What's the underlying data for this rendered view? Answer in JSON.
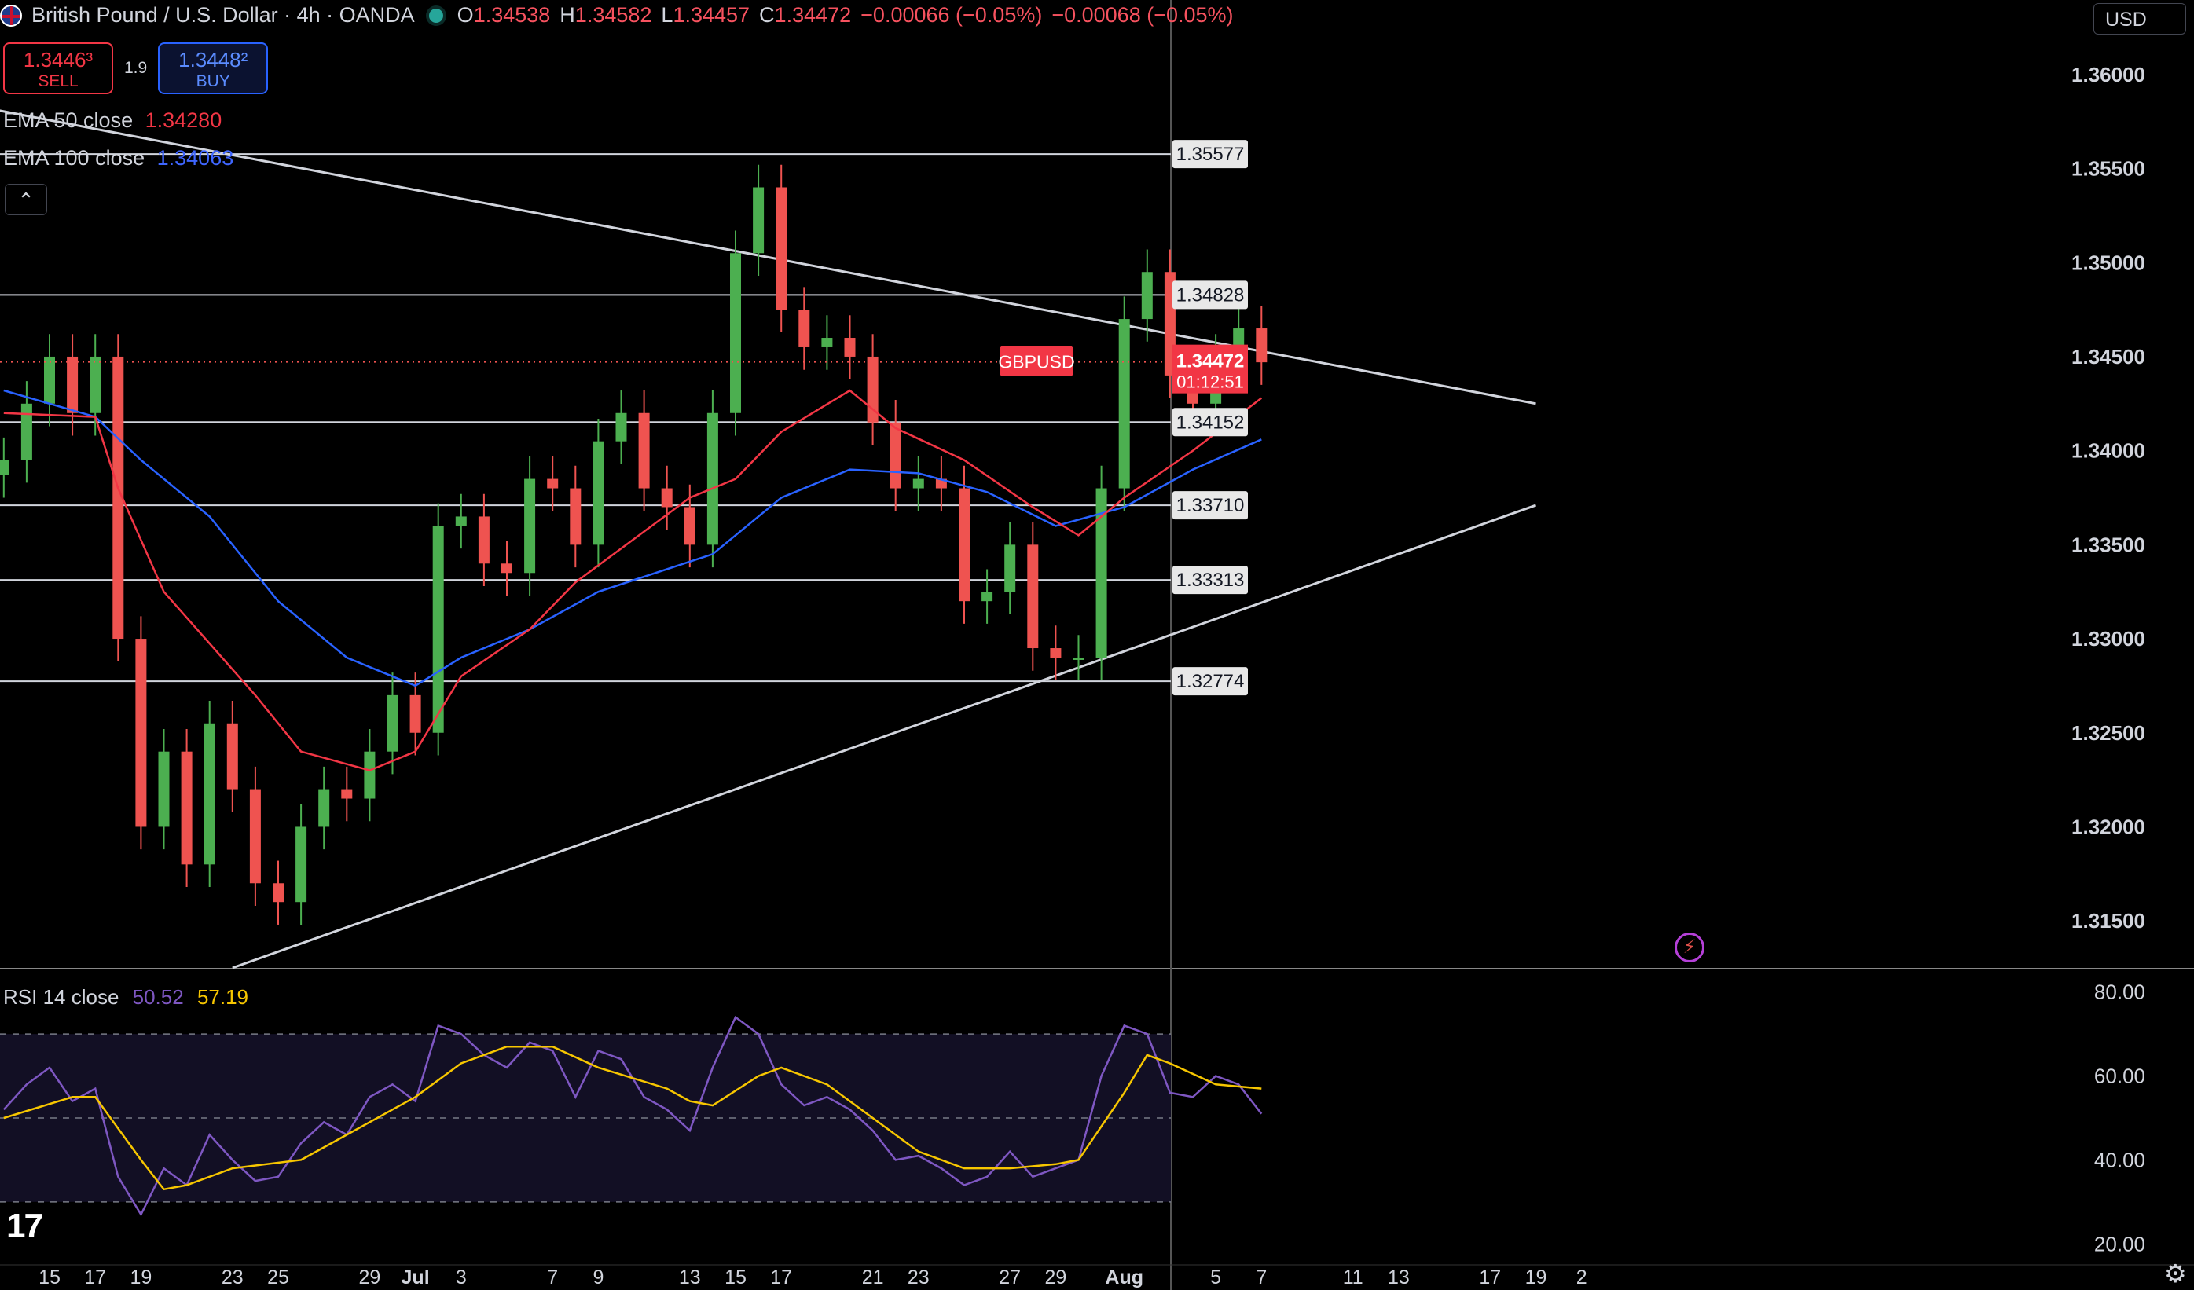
{
  "header": {
    "symbol_title": "British Pound / U.S. Dollar · 4h · OANDA",
    "ohlc": [
      {
        "k": "O",
        "v": "1.34538"
      },
      {
        "k": "H",
        "v": "1.34582"
      },
      {
        "k": "L",
        "v": "1.34457"
      },
      {
        "k": "C",
        "v": "1.34472"
      },
      {
        "k": "",
        "v": "−0.00066 (−0.05%)"
      },
      {
        "k": "",
        "v": "−0.00068 (−0.05%)"
      }
    ],
    "currency": "USD"
  },
  "trade": {
    "sell_price": "1.3446³",
    "sell_label": "SELL",
    "spread": "1.9",
    "buy_price": "1.3448²",
    "buy_label": "BUY"
  },
  "indicators": {
    "ema50_label": "EMA 50 close",
    "ema50_value": "1.34280",
    "ema100_label": "EMA 100 close",
    "ema100_value": "1.34063",
    "rsi_label": "RSI 14 close",
    "rsi_value": "50.52",
    "rsi_ma_value": "57.19"
  },
  "colors": {
    "up": "#26a69a",
    "down": "#ef5350",
    "up_candle": "#4caf50",
    "ema50": "#f23645",
    "ema100": "#2962ff",
    "rsi": "#7e57c2",
    "rsi_ma": "#f7c600",
    "lines": "#d1d4dc"
  },
  "icons": {
    "flag": "gb-us-flag-icon",
    "live": "market-open-icon",
    "collapse": "chevron-up-icon",
    "logo": "tradingview-logo-icon",
    "settings": "gear-icon",
    "alert": "lightning-icon"
  },
  "chart_data": [
    {
      "type": "candlestick",
      "title": "British Pound / U.S. Dollar · 4h · OANDA",
      "price_axis": {
        "ylim": [
          1.3125,
          1.3625
        ],
        "ticks": [
          "1.36000",
          "1.35500",
          "1.35000",
          "1.34500",
          "1.34000",
          "1.33500",
          "1.33000",
          "1.32500",
          "1.32000",
          "1.31500"
        ]
      },
      "time_axis_ticks": [
        "15",
        "17",
        "19",
        "23",
        "25",
        "29",
        "Jul",
        "3",
        "7",
        "9",
        "13",
        "15",
        "17",
        "21",
        "23",
        "27",
        "29",
        "Aug",
        "5",
        "7",
        "11",
        "13",
        "17",
        "19",
        "2"
      ],
      "horizontal_levels": [
        "1.35577",
        "1.34828",
        "1.34152",
        "1.33710",
        "1.33313",
        "1.32774"
      ],
      "last_price": {
        "symbol": "GBPUSD",
        "value": "1.34472",
        "countdown": "01:12:51"
      },
      "close_path": [
        {
          "date": "Jun 13",
          "close": 1.3395
        },
        {
          "date": "Jun 14",
          "close": 1.3425
        },
        {
          "date": "Jun 15",
          "close": 1.345
        },
        {
          "date": "Jun 16",
          "close": 1.342
        },
        {
          "date": "Jun 17",
          "close": 1.345
        },
        {
          "date": "Jun 18",
          "close": 1.33
        },
        {
          "date": "Jun 19",
          "close": 1.32
        },
        {
          "date": "Jun 20",
          "close": 1.324
        },
        {
          "date": "Jun 21",
          "close": 1.318
        },
        {
          "date": "Jun 22",
          "close": 1.3255
        },
        {
          "date": "Jun 23",
          "close": 1.322
        },
        {
          "date": "Jun 24",
          "close": 1.317
        },
        {
          "date": "Jun 25",
          "close": 1.316
        },
        {
          "date": "Jun 26",
          "close": 1.32
        },
        {
          "date": "Jun 27",
          "close": 1.322
        },
        {
          "date": "Jun 28",
          "close": 1.3215
        },
        {
          "date": "Jun 29",
          "close": 1.324
        },
        {
          "date": "Jun 30",
          "close": 1.327
        },
        {
          "date": "Jul 1",
          "close": 1.325
        },
        {
          "date": "Jul 2",
          "close": 1.336
        },
        {
          "date": "Jul 3",
          "close": 1.3365
        },
        {
          "date": "Jul 4",
          "close": 1.334
        },
        {
          "date": "Jul 5",
          "close": 1.3335
        },
        {
          "date": "Jul 6",
          "close": 1.3385
        },
        {
          "date": "Jul 7",
          "close": 1.338
        },
        {
          "date": "Jul 8",
          "close": 1.335
        },
        {
          "date": "Jul 9",
          "close": 1.3405
        },
        {
          "date": "Jul 10",
          "close": 1.342
        },
        {
          "date": "Jul 11",
          "close": 1.338
        },
        {
          "date": "Jul 12",
          "close": 1.337
        },
        {
          "date": "Jul 13",
          "close": 1.335
        },
        {
          "date": "Jul 14",
          "close": 1.342
        },
        {
          "date": "Jul 15",
          "close": 1.3505
        },
        {
          "date": "Jul 16",
          "close": 1.354
        },
        {
          "date": "Jul 17",
          "close": 1.3475
        },
        {
          "date": "Jul 18",
          "close": 1.3455
        },
        {
          "date": "Jul 19",
          "close": 1.346
        },
        {
          "date": "Jul 20",
          "close": 1.345
        },
        {
          "date": "Jul 21",
          "close": 1.3415
        },
        {
          "date": "Jul 22",
          "close": 1.338
        },
        {
          "date": "Jul 23",
          "close": 1.3385
        },
        {
          "date": "Jul 24",
          "close": 1.338
        },
        {
          "date": "Jul 25",
          "close": 1.332
        },
        {
          "date": "Jul 26",
          "close": 1.3325
        },
        {
          "date": "Jul 27",
          "close": 1.335
        },
        {
          "date": "Jul 28",
          "close": 1.3295
        },
        {
          "date": "Jul 29",
          "close": 1.329
        },
        {
          "date": "Jul 30",
          "close": 1.329
        },
        {
          "date": "Jul 31",
          "close": 1.338
        },
        {
          "date": "Aug 1",
          "close": 1.347
        },
        {
          "date": "Aug 2",
          "close": 1.3495
        },
        {
          "date": "Aug 3",
          "close": 1.344
        },
        {
          "date": "Aug 4",
          "close": 1.3425
        },
        {
          "date": "Aug 5",
          "close": 1.345
        },
        {
          "date": "Aug 6",
          "close": 1.3465
        },
        {
          "date": "Aug 7",
          "close": 1.3447
        }
      ],
      "ema50_path": [
        {
          "date": "Jun 13",
          "value": 1.342
        },
        {
          "date": "Jun 17",
          "value": 1.3418
        },
        {
          "date": "Jun 18",
          "value": 1.338
        },
        {
          "date": "Jun 20",
          "value": 1.3325
        },
        {
          "date": "Jun 24",
          "value": 1.327
        },
        {
          "date": "Jun 26",
          "value": 1.324
        },
        {
          "date": "Jun 29",
          "value": 1.323
        },
        {
          "date": "Jul 1",
          "value": 1.324
        },
        {
          "date": "Jul 3",
          "value": 1.328
        },
        {
          "date": "Jul 6",
          "value": 1.3305
        },
        {
          "date": "Jul 8",
          "value": 1.333
        },
        {
          "date": "Jul 13",
          "value": 1.3375
        },
        {
          "date": "Jul 15",
          "value": 1.3385
        },
        {
          "date": "Jul 17",
          "value": 1.341
        },
        {
          "date": "Jul 20",
          "value": 1.3432
        },
        {
          "date": "Jul 22",
          "value": 1.3412
        },
        {
          "date": "Jul 25",
          "value": 1.3395
        },
        {
          "date": "Jul 28",
          "value": 1.337
        },
        {
          "date": "Jul 30",
          "value": 1.3355
        },
        {
          "date": "Aug 1",
          "value": 1.3375
        },
        {
          "date": "Aug 4",
          "value": 1.34
        },
        {
          "date": "Aug 7",
          "value": 1.3428
        }
      ],
      "ema100_path": [
        {
          "date": "Jun 13",
          "value": 1.3432
        },
        {
          "date": "Jun 17",
          "value": 1.3418
        },
        {
          "date": "Jun 19",
          "value": 1.3395
        },
        {
          "date": "Jun 22",
          "value": 1.3365
        },
        {
          "date": "Jun 25",
          "value": 1.332
        },
        {
          "date": "Jun 28",
          "value": 1.329
        },
        {
          "date": "Jul 1",
          "value": 1.3275
        },
        {
          "date": "Jul 3",
          "value": 1.329
        },
        {
          "date": "Jul 6",
          "value": 1.3305
        },
        {
          "date": "Jul 9",
          "value": 1.3325
        },
        {
          "date": "Jul 14",
          "value": 1.3345
        },
        {
          "date": "Jul 17",
          "value": 1.3375
        },
        {
          "date": "Jul 20",
          "value": 1.339
        },
        {
          "date": "Jul 23",
          "value": 1.3388
        },
        {
          "date": "Jul 26",
          "value": 1.3378
        },
        {
          "date": "Jul 29",
          "value": 1.336
        },
        {
          "date": "Aug 1",
          "value": 1.337
        },
        {
          "date": "Aug 4",
          "value": 1.339
        },
        {
          "date": "Aug 7",
          "value": 1.3406
        }
      ],
      "trendlines": [
        {
          "from": {
            "date": "Jun 11",
            "value": 1.3585
          },
          "to": {
            "date": "Aug 19",
            "value": 1.3425
          }
        },
        {
          "from": {
            "date": "Jun 23",
            "value": 1.3125
          },
          "to": {
            "date": "Aug 19",
            "value": 1.3371
          }
        }
      ]
    },
    {
      "type": "line",
      "title": "RSI 14 close",
      "ylim": [
        15,
        85
      ],
      "ticks": [
        "80.00",
        "60.00",
        "40.00",
        "20.00"
      ],
      "bands": [
        70,
        50,
        30
      ],
      "series": [
        {
          "name": "RSI 14 close",
          "current": 50.52
        },
        {
          "name": "",
          "current": 57.19
        }
      ],
      "rsi_path": [
        {
          "date": "Jun 13",
          "value": 52
        },
        {
          "date": "Jun 14",
          "value": 58
        },
        {
          "date": "Jun 15",
          "value": 62
        },
        {
          "date": "Jun 16",
          "value": 54
        },
        {
          "date": "Jun 17",
          "value": 57
        },
        {
          "date": "Jun 18",
          "value": 36
        },
        {
          "date": "Jun 19",
          "value": 27
        },
        {
          "date": "Jun 20",
          "value": 38
        },
        {
          "date": "Jun 21",
          "value": 34
        },
        {
          "date": "Jun 22",
          "value": 46
        },
        {
          "date": "Jun 23",
          "value": 40
        },
        {
          "date": "Jun 24",
          "value": 35
        },
        {
          "date": "Jun 25",
          "value": 36
        },
        {
          "date": "Jun 26",
          "value": 44
        },
        {
          "date": "Jun 27",
          "value": 49
        },
        {
          "date": "Jun 28",
          "value": 46
        },
        {
          "date": "Jun 29",
          "value": 55
        },
        {
          "date": "Jun 30",
          "value": 58
        },
        {
          "date": "Jul 1",
          "value": 54
        },
        {
          "date": "Jul 2",
          "value": 72
        },
        {
          "date": "Jul 3",
          "value": 70
        },
        {
          "date": "Jul 4",
          "value": 65
        },
        {
          "date": "Jul 5",
          "value": 62
        },
        {
          "date": "Jul 6",
          "value": 68
        },
        {
          "date": "Jul 7",
          "value": 66
        },
        {
          "date": "Jul 8",
          "value": 55
        },
        {
          "date": "Jul 9",
          "value": 66
        },
        {
          "date": "Jul 10",
          "value": 64
        },
        {
          "date": "Jul 11",
          "value": 55
        },
        {
          "date": "Jul 12",
          "value": 52
        },
        {
          "date": "Jul 13",
          "value": 47
        },
        {
          "date": "Jul 14",
          "value": 62
        },
        {
          "date": "Jul 15",
          "value": 74
        },
        {
          "date": "Jul 16",
          "value": 70
        },
        {
          "date": "Jul 17",
          "value": 58
        },
        {
          "date": "Jul 18",
          "value": 53
        },
        {
          "date": "Jul 19",
          "value": 55
        },
        {
          "date": "Jul 20",
          "value": 52
        },
        {
          "date": "Jul 21",
          "value": 47
        },
        {
          "date": "Jul 22",
          "value": 40
        },
        {
          "date": "Jul 23",
          "value": 41
        },
        {
          "date": "Jul 24",
          "value": 38
        },
        {
          "date": "Jul 25",
          "value": 34
        },
        {
          "date": "Jul 26",
          "value": 36
        },
        {
          "date": "Jul 27",
          "value": 42
        },
        {
          "date": "Jul 28",
          "value": 36
        },
        {
          "date": "Jul 29",
          "value": 38
        },
        {
          "date": "Jul 30",
          "value": 40
        },
        {
          "date": "Jul 31",
          "value": 60
        },
        {
          "date": "Aug 1",
          "value": 72
        },
        {
          "date": "Aug 2",
          "value": 70
        },
        {
          "date": "Aug 3",
          "value": 56
        },
        {
          "date": "Aug 4",
          "value": 55
        },
        {
          "date": "Aug 5",
          "value": 60
        },
        {
          "date": "Aug 6",
          "value": 58
        },
        {
          "date": "Aug 7",
          "value": 51
        }
      ],
      "rsi_ma_path": [
        {
          "date": "Jun 13",
          "value": 50
        },
        {
          "date": "Jun 16",
          "value": 55
        },
        {
          "date": "Jun 17",
          "value": 55
        },
        {
          "date": "Jun 19",
          "value": 40
        },
        {
          "date": "Jun 20",
          "value": 33
        },
        {
          "date": "Jun 21",
          "value": 34
        },
        {
          "date": "Jun 23",
          "value": 38
        },
        {
          "date": "Jun 26",
          "value": 40
        },
        {
          "date": "Jun 28",
          "value": 46
        },
        {
          "date": "Jun 30",
          "value": 52
        },
        {
          "date": "Jul 1",
          "value": 55
        },
        {
          "date": "Jul 3",
          "value": 63
        },
        {
          "date": "Jul 5",
          "value": 67
        },
        {
          "date": "Jul 7",
          "value": 67
        },
        {
          "date": "Jul 9",
          "value": 62
        },
        {
          "date": "Jul 12",
          "value": 57
        },
        {
          "date": "Jul 13",
          "value": 54
        },
        {
          "date": "Jul 14",
          "value": 53
        },
        {
          "date": "Jul 16",
          "value": 60
        },
        {
          "date": "Jul 17",
          "value": 62
        },
        {
          "date": "Jul 19",
          "value": 58
        },
        {
          "date": "Jul 21",
          "value": 50
        },
        {
          "date": "Jul 23",
          "value": 42
        },
        {
          "date": "Jul 25",
          "value": 38
        },
        {
          "date": "Jul 27",
          "value": 38
        },
        {
          "date": "Jul 29",
          "value": 39
        },
        {
          "date": "Jul 30",
          "value": 40
        },
        {
          "date": "Aug 1",
          "value": 56
        },
        {
          "date": "Aug 2",
          "value": 65
        },
        {
          "date": "Aug 3",
          "value": 63
        },
        {
          "date": "Aug 5",
          "value": 58
        },
        {
          "date": "Aug 7",
          "value": 57
        }
      ]
    }
  ]
}
